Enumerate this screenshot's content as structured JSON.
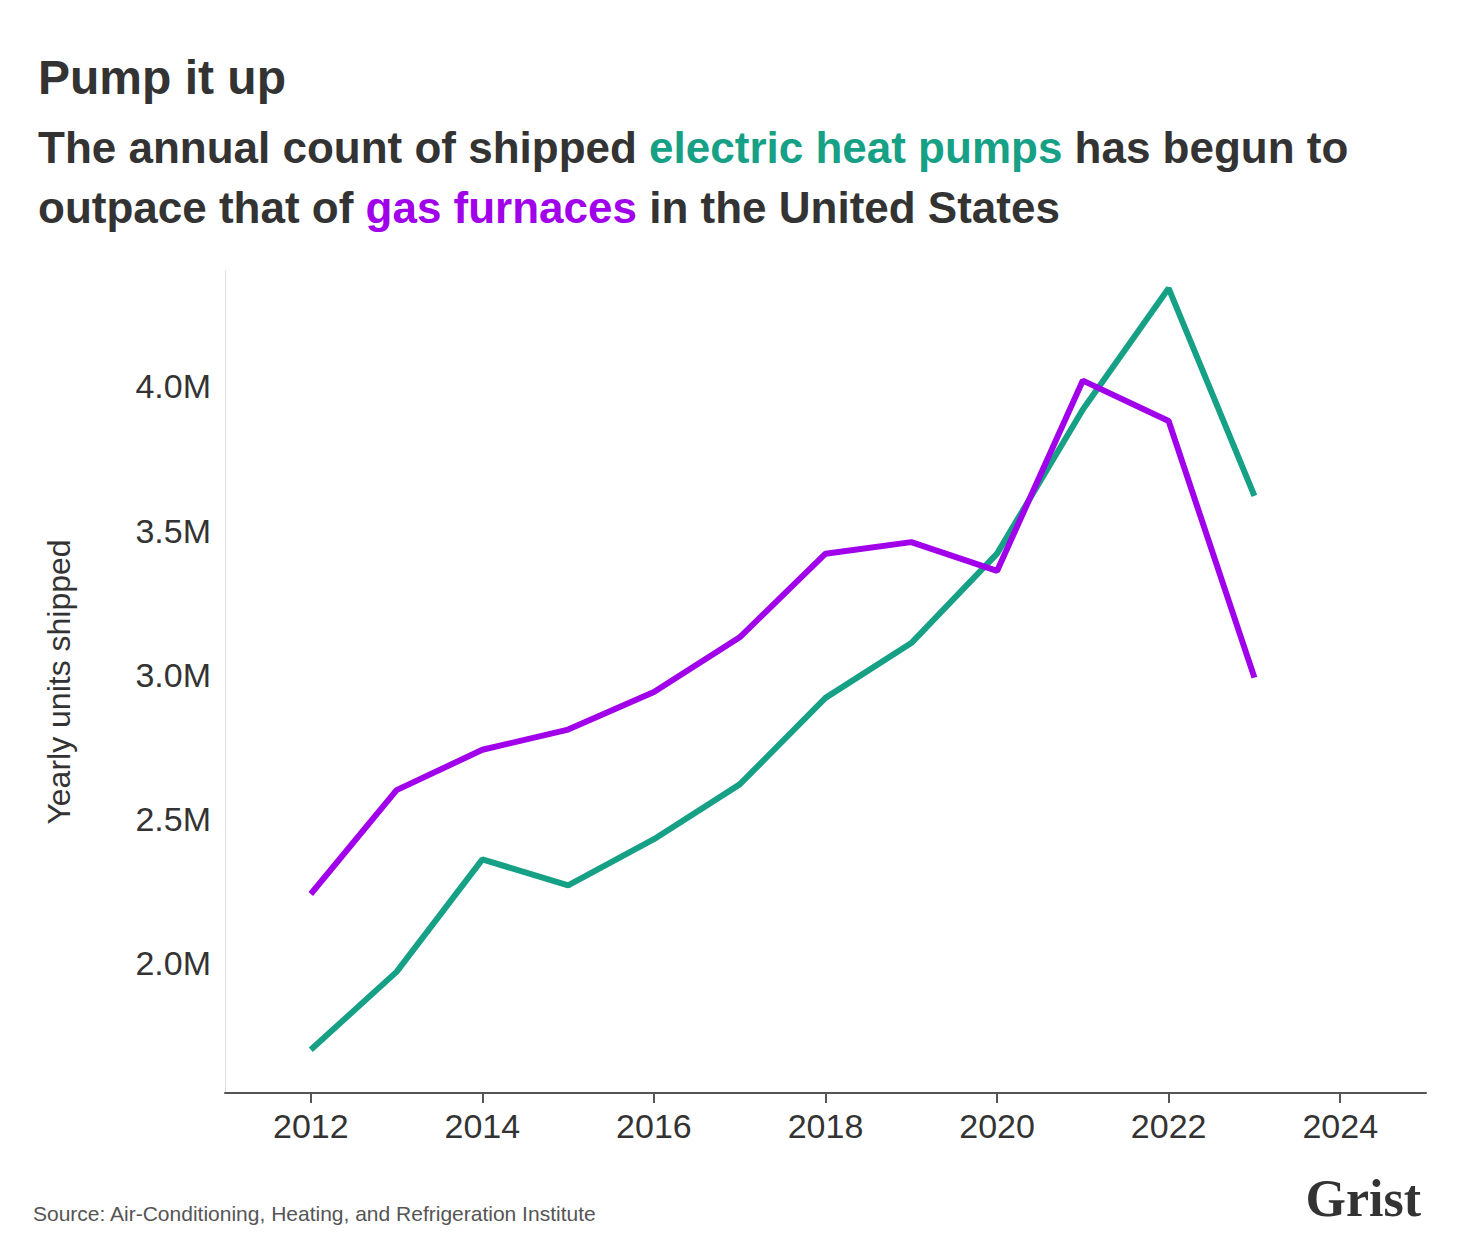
{
  "chart_data": {
    "type": "line",
    "title": "Pump it up",
    "subtitle": "The annual count of shipped electric heat pumps has begun to outpace that of gas furnaces in the United States",
    "y_label": "Yearly units shipped",
    "source": "Source: Air-Conditioning, Heating, and Refrigeration Institute",
    "logo": "Grist",
    "x": [
      2012,
      2013,
      2014,
      2015,
      2016,
      2017,
      2018,
      2019,
      2020,
      2021,
      2022,
      2023
    ],
    "series": [
      {
        "name": "electric heat pumps",
        "color": "#16a085",
        "values": [
          1.7,
          1.97,
          2.36,
          2.27,
          2.43,
          2.62,
          2.92,
          3.11,
          3.42,
          3.92,
          4.34,
          3.62
        ]
      },
      {
        "name": "gas furnaces",
        "color": "#a100ea",
        "values": [
          2.24,
          2.6,
          2.74,
          2.81,
          2.94,
          3.13,
          3.42,
          3.46,
          3.36,
          4.02,
          3.88,
          2.99
        ]
      }
    ],
    "xlim": [
      2011,
      2025
    ],
    "xticks": [
      2012,
      2014,
      2016,
      2018,
      2020,
      2022,
      2024
    ],
    "ylim": [
      1.55,
      4.4
    ],
    "yticks": [
      {
        "value": 2.0,
        "label": "2.0M"
      },
      {
        "value": 2.5,
        "label": "2.5M"
      },
      {
        "value": 3.0,
        "label": "3.0M"
      },
      {
        "value": 3.5,
        "label": "3.5M"
      },
      {
        "value": 4.0,
        "label": "4.0M"
      }
    ],
    "grid": false
  }
}
